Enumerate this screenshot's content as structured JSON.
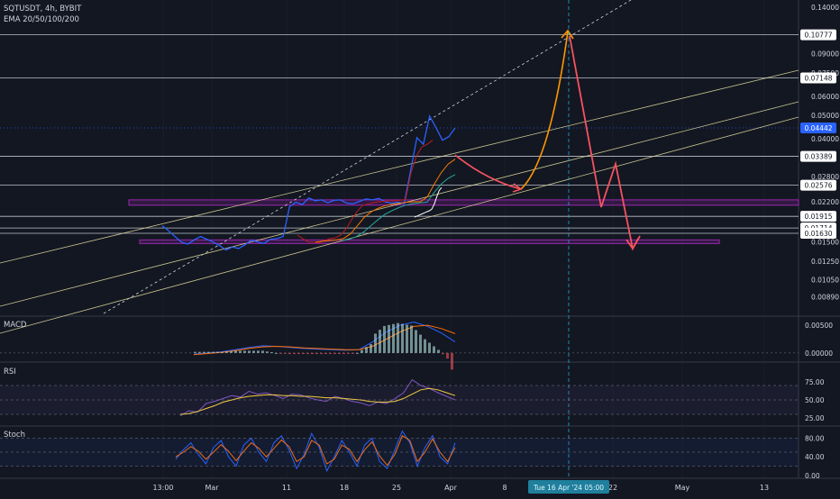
{
  "colors": {
    "background": "#131722",
    "grid": "#2a2e39",
    "text": "#d1d4dc",
    "price": "#2962ff",
    "level": "#d1d4dc",
    "channel": "#e7e3a3",
    "zone": "#9c27b0",
    "arrow_up": "#ff9800",
    "arrow_down": "#f7525f",
    "crosshair": "#26a6d6",
    "ema20": "#b71c1c",
    "ema50": "#f57c00",
    "ema100": "#26a69a",
    "ema200": "#ffffff",
    "macd": "#2962ff",
    "signal": "#ff6d00",
    "rsi": "#7e57c2",
    "rsi_ma": "#fdd835",
    "stoch_k": "#2962ff",
    "stoch_d": "#ff6d00"
  },
  "chart_data": [
    {
      "type": "line",
      "title": "SQTUSDT, 4h, BYBIT",
      "legend": [
        "EMA 20/50/100/200"
      ],
      "y_scale": "log",
      "ylim": [
        0.0076,
        0.145
      ],
      "y_ticks": [
        "0.14000",
        "0.09000",
        "0.07500",
        "0.06000",
        "0.05000",
        "0.04000",
        "0.02800",
        "0.02200",
        "0.01500",
        "0.01250",
        "0.01050",
        "0.00890"
      ],
      "y_tick_values": [
        0.14,
        0.09,
        0.075,
        0.06,
        0.05,
        0.04,
        0.028,
        0.022,
        0.015,
        0.0125,
        0.0105,
        0.0089
      ],
      "price_labels": [
        "0.10777",
        "0.07148",
        "0.04442",
        "0.03389",
        "0.02576",
        "0.01915",
        "0.01714",
        "0.01630"
      ],
      "price_label_values": [
        0.10777,
        0.07148,
        0.04442,
        0.03389,
        0.02576,
        0.01915,
        0.01714,
        0.0163
      ],
      "current_price_index": 2,
      "x_ticks": [
        "13:00",
        "Mar",
        "11",
        "18",
        "25",
        "Apr",
        "8",
        "22",
        "May",
        "13"
      ],
      "crosshair_label": "Tue 16 Apr '24   05:00",
      "horizontal_levels": [
        0.10777,
        0.07148,
        0.03389,
        0.02576,
        0.01915,
        0.01714,
        0.0163
      ],
      "zones": [
        [
          0.0213,
          0.0224
        ],
        [
          0.0148,
          0.0153
        ]
      ],
      "series": [
        {
          "values": [
            0.0175,
            0.0167,
            0.0158,
            0.015,
            0.0147,
            0.0153,
            0.0158,
            0.0154,
            0.015,
            0.0145,
            0.0139,
            0.0143,
            0.0141,
            0.0146,
            0.0153,
            0.015,
            0.0148,
            0.0154,
            0.0155,
            0.0158,
            0.021,
            0.0219,
            0.0214,
            0.0228,
            0.0222,
            0.0224,
            0.0218,
            0.0223,
            0.0224,
            0.0217,
            0.0216,
            0.0221,
            0.0226,
            0.0224,
            0.0227,
            0.022,
            0.0217,
            0.0219,
            0.0216,
            0.0295,
            0.0405,
            0.038,
            0.0497,
            0.0445,
            0.0395,
            0.0409,
            0.0444
          ]
        },
        {
          "values": [
            0.016,
            0.0155,
            0.015,
            0.015,
            0.0149,
            0.0152,
            0.0155,
            0.0156,
            0.016,
            0.017,
            0.0185,
            0.02,
            0.0212,
            0.0215,
            0.0218,
            0.022,
            0.0221,
            0.0222,
            0.0222,
            0.0223,
            0.0225,
            0.029,
            0.034,
            0.037,
            0.038,
            0.0395
          ]
        },
        {
          "values": [
            0.015,
            0.0151,
            0.0152,
            0.0153,
            0.0155,
            0.0162,
            0.0175,
            0.019,
            0.02,
            0.0207,
            0.0212,
            0.0215,
            0.0217,
            0.0219,
            0.022,
            0.022,
            0.023,
            0.026,
            0.029,
            0.0315,
            0.033
          ]
        },
        {
          "values": [
            0.0152,
            0.0154,
            0.0158,
            0.0165,
            0.0175,
            0.0185,
            0.0195,
            0.0202,
            0.0208,
            0.0213,
            0.0216,
            0.0218,
            0.0219,
            0.024,
            0.026,
            0.0275,
            0.0285
          ]
        },
        {
          "values": [
            0.019,
            0.0192,
            0.0194,
            0.0196,
            0.0198,
            0.02,
            0.0202,
            0.0205,
            0.0215,
            0.023,
            0.0245,
            0.0252
          ]
        }
      ],
      "projection_up": [
        0.0265,
        0.10777
      ],
      "projection_down": [
        0.1077,
        0.0215,
        0.0325,
        0.0155,
        0.0163
      ]
    },
    {
      "type": "line",
      "title": "MACD",
      "y_ticks": [
        "0.00500",
        "0.00000"
      ],
      "y_tick_values": [
        0.005,
        0.0
      ],
      "series": [
        {
          "values": [
            -0.0002,
            0.0,
            0.0002,
            0.0006,
            0.001,
            0.0013,
            0.0012,
            0.001,
            0.0008,
            0.0007,
            0.0006,
            0.0005,
            0.0006,
            0.002,
            0.0038,
            0.005,
            0.0056,
            0.0048,
            0.0036,
            0.002
          ]
        },
        {
          "values": [
            -0.0003,
            -0.0001,
            0.0001,
            0.0004,
            0.0008,
            0.0011,
            0.0012,
            0.0011,
            0.0009,
            0.0008,
            0.0007,
            0.0006,
            0.0006,
            0.0012,
            0.0025,
            0.0038,
            0.0048,
            0.005,
            0.0044,
            0.0035
          ]
        }
      ]
    },
    {
      "type": "line",
      "title": "RSI",
      "y_ticks": [
        "75.00",
        "50.00",
        "25.00"
      ],
      "y_tick_values": [
        75,
        50,
        25
      ],
      "series": [
        {
          "values": [
            28,
            35,
            33,
            45,
            48,
            52,
            56,
            54,
            62,
            58,
            60,
            56,
            52,
            58,
            57,
            53,
            50,
            48,
            55,
            52,
            48,
            46,
            42,
            47,
            45,
            52,
            60,
            78,
            70,
            66,
            60,
            55,
            50
          ]
        },
        {
          "values": [
            30,
            31,
            34,
            38,
            42,
            47,
            50,
            53,
            55,
            56,
            57,
            57,
            56,
            56,
            55,
            55,
            54,
            53,
            53,
            52,
            51,
            50,
            48,
            47,
            47,
            48,
            52,
            58,
            64,
            66,
            64,
            60,
            56
          ]
        }
      ]
    },
    {
      "type": "line",
      "title": "Stoch",
      "y_ticks": [
        "80.00",
        "40.00",
        "0.00"
      ],
      "y_tick_values": [
        80,
        40,
        0
      ],
      "series": [
        {
          "values": [
            35,
            55,
            70,
            45,
            25,
            60,
            75,
            40,
            20,
            65,
            80,
            50,
            30,
            70,
            85,
            55,
            15,
            45,
            90,
            60,
            10,
            40,
            75,
            50,
            20,
            65,
            80,
            30,
            15,
            55,
            95,
            70,
            20,
            60,
            85,
            40,
            25,
            70
          ]
        },
        {
          "values": [
            40,
            50,
            62,
            52,
            35,
            50,
            66,
            52,
            32,
            52,
            70,
            58,
            40,
            58,
            76,
            62,
            30,
            40,
            75,
            65,
            25,
            35,
            65,
            56,
            30,
            55,
            72,
            42,
            22,
            45,
            85,
            75,
            30,
            50,
            78,
            50,
            30,
            60
          ]
        }
      ]
    }
  ]
}
